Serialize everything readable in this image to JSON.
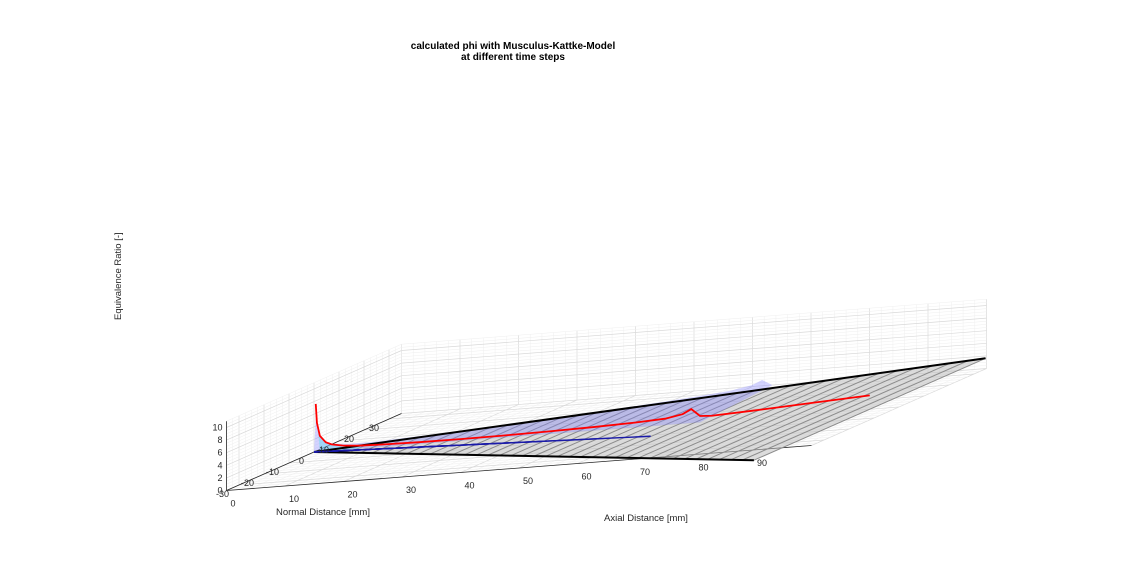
{
  "chart_data": {
    "type": "surface3d",
    "title": "calculated phi with Musculus-Kattke-Model",
    "subtitle": "at different time steps",
    "xlabel": "Axial Distance [mm]",
    "ylabel": "Normal Distance [mm]",
    "zlabel": "Equivalence Ratio [-]",
    "xlim": [
      0,
      100
    ],
    "ylim": [
      -35,
      35
    ],
    "zlim": [
      0,
      11
    ],
    "x_ticks": [
      0,
      10,
      20,
      30,
      40,
      50,
      60,
      70,
      80,
      90
    ],
    "y_ticks": [
      -30,
      -20,
      -10,
      0,
      10,
      20,
      30
    ],
    "z_ticks": [
      0,
      2,
      4,
      6,
      8,
      10
    ],
    "grid": true,
    "spray_half_angle_deg": 26,
    "surface_color": "#bfbfbf",
    "cone_face_color": "#8080ff",
    "near_nozzle_face_color": "#66d9ee",
    "spray_edge_color": "#000000",
    "centerline_series": {
      "name": "",
      "color": "#ff0000",
      "x": [
        0.3,
        0.5,
        1,
        2,
        3,
        5,
        8,
        12,
        18,
        25,
        32,
        40,
        48,
        55,
        60,
        63,
        64.5,
        66,
        68,
        75,
        85,
        95
      ],
      "z": [
        7.6,
        4.6,
        2.5,
        1.4,
        1.0,
        0.66,
        0.45,
        0.35,
        0.27,
        0.26,
        0.3,
        0.4,
        0.55,
        0.75,
        1.0,
        1.5,
        2.2,
        1.0,
        0.9,
        1.2,
        1.7,
        2.2
      ]
    },
    "radial_series": [
      {
        "x_end": 65,
        "color": "#1a1aa8"
      },
      {
        "x_end": 55,
        "color": "#1a1aa8"
      },
      {
        "x_end": 45,
        "color": "#1a1aa8"
      },
      {
        "x_end": 35,
        "color": "#1a1aa8"
      },
      {
        "x_end": 25,
        "color": "#1a1aa8"
      },
      {
        "x_end": 15,
        "color": "#1a1aa8"
      },
      {
        "x_end": 8,
        "color": "#1a1aa8"
      }
    ]
  }
}
